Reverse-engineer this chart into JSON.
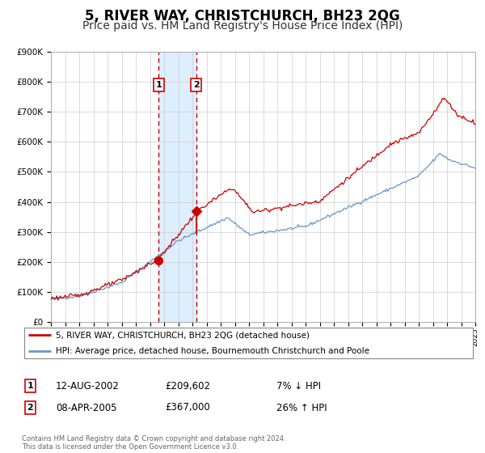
{
  "title": "5, RIVER WAY, CHRISTCHURCH, BH23 2QG",
  "subtitle": "Price paid vs. HM Land Registry's House Price Index (HPI)",
  "red_line_label": "5, RIVER WAY, CHRISTCHURCH, BH23 2QG (detached house)",
  "blue_line_label": "HPI: Average price, detached house, Bournemouth Christchurch and Poole",
  "sale1_date": "12-AUG-2002",
  "sale1_price": 209602,
  "sale1_hpi_pct": "7% ↓ HPI",
  "sale2_date": "08-APR-2005",
  "sale2_price": 367000,
  "sale2_hpi_pct": "26% ↑ HPI",
  "footnote": "Contains HM Land Registry data © Crown copyright and database right 2024.\nThis data is licensed under the Open Government Licence v3.0.",
  "ylim": [
    0,
    900000
  ],
  "yticks": [
    0,
    100000,
    200000,
    300000,
    400000,
    500000,
    600000,
    700000,
    800000,
    900000
  ],
  "sale1_year": 2002.62,
  "sale2_year": 2005.27,
  "red_color": "#cc0000",
  "blue_color": "#6699cc",
  "shade_color": "#ddeeff",
  "grid_color": "#cccccc",
  "background_color": "#ffffff",
  "title_fontsize": 12,
  "subtitle_fontsize": 10,
  "label_fontsize": 8
}
